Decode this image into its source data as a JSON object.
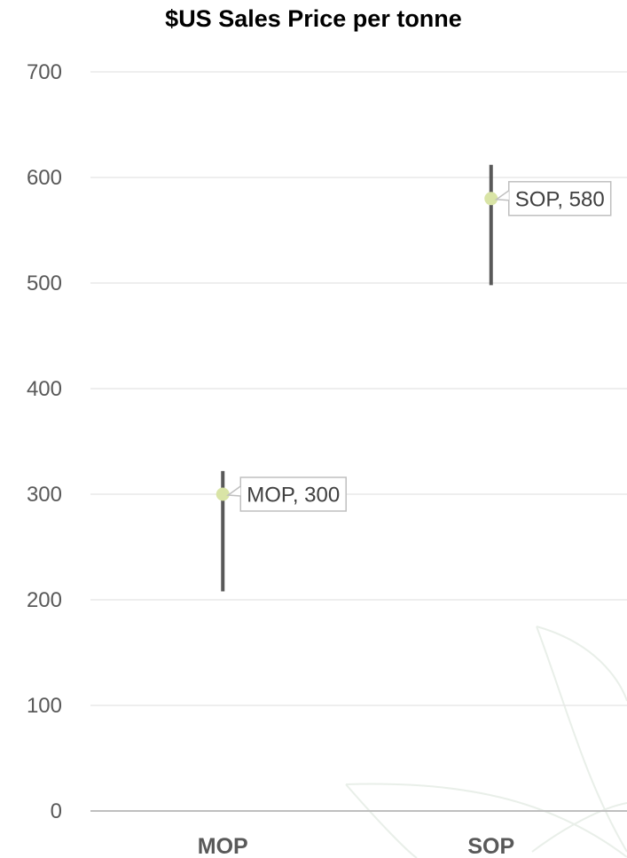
{
  "chart_data": {
    "type": "scatter",
    "title": "$US Sales Price per tonne",
    "categories": [
      "MOP",
      "SOP"
    ],
    "points": [
      {
        "category": "MOP",
        "value": 300,
        "low": 208,
        "high": 322,
        "label": "MOP, 300"
      },
      {
        "category": "SOP",
        "value": 580,
        "low": 498,
        "high": 612,
        "label": "SOP, 580"
      }
    ],
    "yticks": [
      "0",
      "100",
      "200",
      "300",
      "400",
      "500",
      "600",
      "700"
    ],
    "ylim": [
      0,
      700
    ],
    "grid": true,
    "legend": "none",
    "colors": {
      "marker": "#d9e4a6",
      "error_bar": "#595959",
      "grid": "#e8e8e8",
      "axis": "#bfbfbf",
      "watermark": "#e9efe9"
    }
  }
}
